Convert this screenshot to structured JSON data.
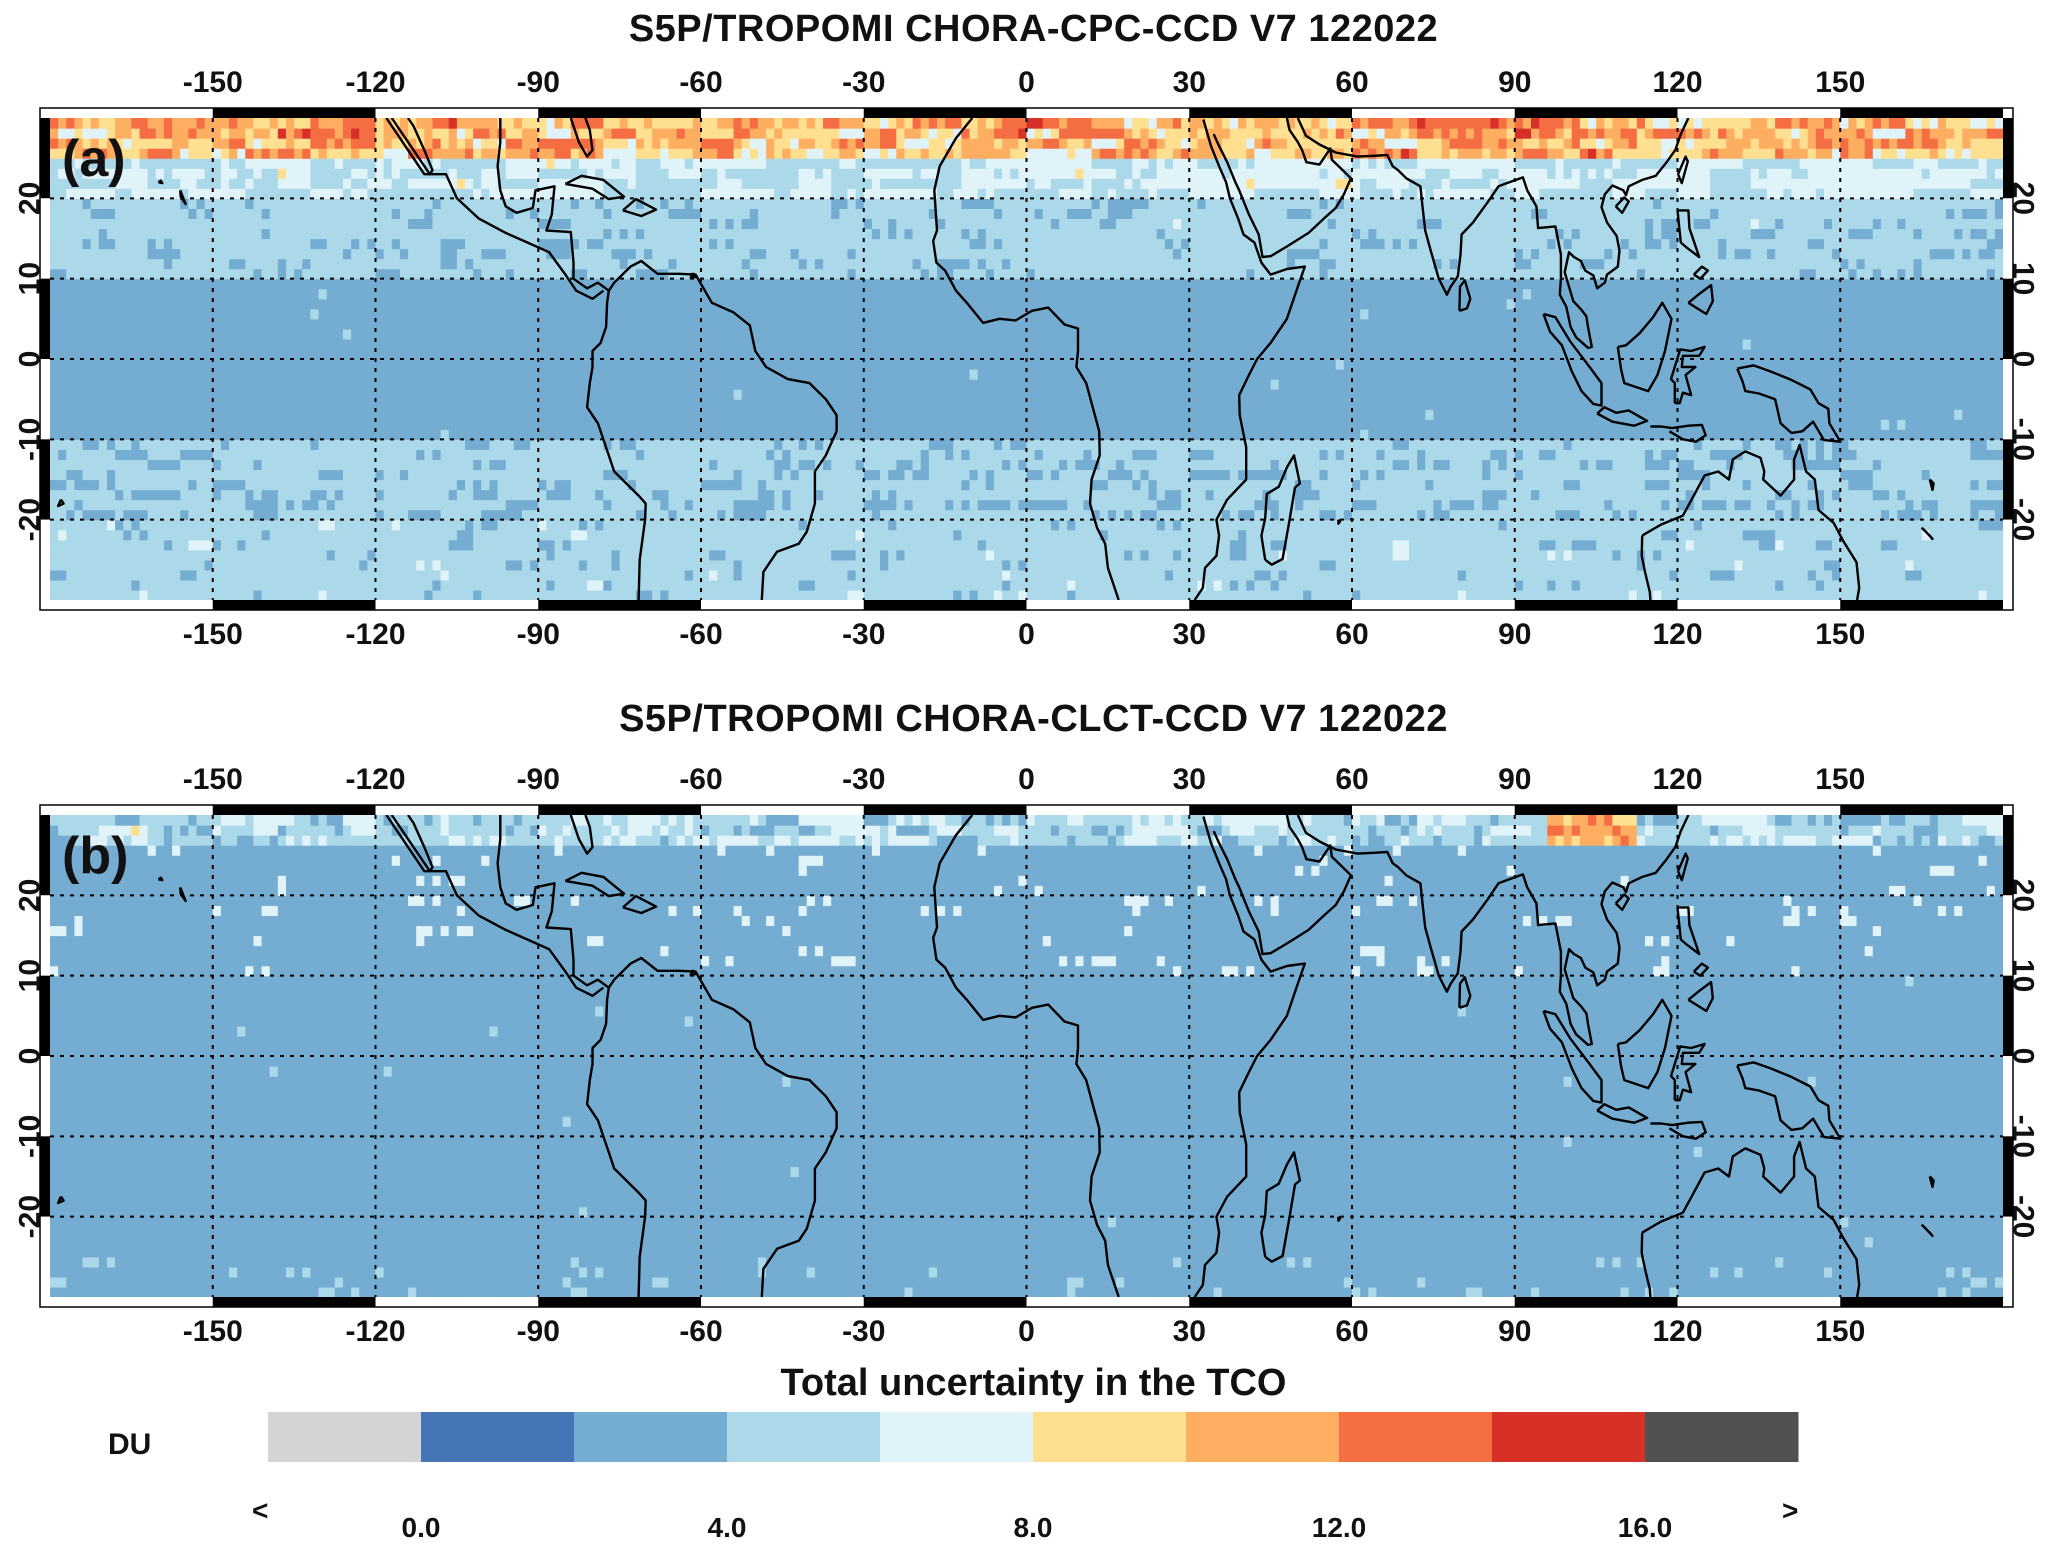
{
  "panels": [
    {
      "id": "a",
      "title": "S5P/TROPOMI CHORA-CPC-CCD V7 122022",
      "panel_label": "(a)",
      "profile": "cpc"
    },
    {
      "id": "b",
      "title": "S5P/TROPOMI CHORA-CLCT-CCD V7 122022",
      "panel_label": "(b)",
      "profile": "clct"
    }
  ],
  "axes": {
    "lon_ticks": [
      "-150",
      "-120",
      "-90",
      "-60",
      "-30",
      "0",
      "30",
      "60",
      "90",
      "120",
      "150"
    ],
    "lon_values": [
      -150,
      -120,
      -90,
      -60,
      -30,
      0,
      30,
      60,
      90,
      120,
      150
    ],
    "lat_ticks": [
      "20",
      "10",
      "0",
      "-10",
      "-20"
    ],
    "lat_values": [
      20,
      10,
      0,
      -10,
      -20
    ],
    "lon_range": [
      -180,
      180
    ],
    "lat_range": [
      -30,
      30
    ],
    "grid": "dotted"
  },
  "colorbar": {
    "title": "Total uncertainty in the TCO",
    "unit": "DU",
    "under_symbol": "<",
    "over_symbol": ">",
    "tick_labels": [
      "0.0",
      "4.0",
      "8.0",
      "12.0",
      "16.0"
    ],
    "tick_values": [
      0,
      4,
      8,
      12,
      16
    ],
    "bins": [
      {
        "lo": null,
        "hi": 0,
        "color": "#d4d4d4"
      },
      {
        "lo": 0,
        "hi": 2,
        "color": "#4575b4"
      },
      {
        "lo": 2,
        "hi": 4,
        "color": "#74add1"
      },
      {
        "lo": 4,
        "hi": 6,
        "color": "#abd9e9"
      },
      {
        "lo": 6,
        "hi": 8,
        "color": "#e0f3f8"
      },
      {
        "lo": 8,
        "hi": 10,
        "color": "#fee090"
      },
      {
        "lo": 10,
        "hi": 12,
        "color": "#fdae61"
      },
      {
        "lo": 12,
        "hi": 14,
        "color": "#f46d43"
      },
      {
        "lo": 14,
        "hi": 16,
        "color": "#d73027"
      },
      {
        "lo": 16,
        "hi": null,
        "color": "#505050"
      }
    ]
  },
  "chart_data": [
    {
      "type": "heatmap",
      "title": "S5P/TROPOMI CHORA-CPC-CCD V7 122022",
      "xlabel": "",
      "ylabel": "",
      "xlim": [
        -180,
        180
      ],
      "ylim": [
        -30,
        30
      ],
      "units": "DU",
      "zonal_bands_approx": [
        {
          "lat": [
            25,
            30
          ],
          "value_range": [
            6,
            14
          ]
        },
        {
          "lat": [
            20,
            25
          ],
          "value_range": [
            4,
            8
          ]
        },
        {
          "lat": [
            10,
            20
          ],
          "value_range": [
            3,
            6
          ]
        },
        {
          "lat": [
            -10,
            10
          ],
          "value_range": [
            2,
            4
          ]
        },
        {
          "lat": [
            -30,
            -10
          ],
          "value_range": [
            3,
            6
          ]
        }
      ]
    },
    {
      "type": "heatmap",
      "title": "S5P/TROPOMI CHORA-CLCT-CCD V7 122022",
      "xlabel": "",
      "ylabel": "",
      "xlim": [
        -180,
        180
      ],
      "ylim": [
        -30,
        30
      ],
      "units": "DU",
      "zonal_bands_approx": [
        {
          "lat": [
            25,
            30
          ],
          "value_range": [
            3,
            12
          ]
        },
        {
          "lat": [
            10,
            25
          ],
          "value_range": [
            2,
            6
          ]
        },
        {
          "lat": [
            -25,
            10
          ],
          "value_range": [
            2,
            4
          ]
        },
        {
          "lat": [
            -30,
            -25
          ],
          "value_range": [
            2,
            6
          ]
        }
      ]
    }
  ]
}
